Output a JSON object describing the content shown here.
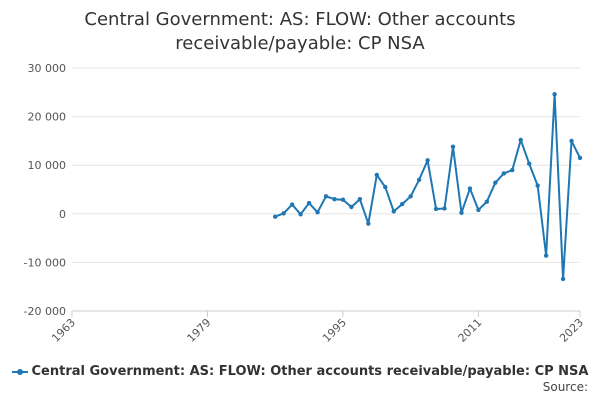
{
  "chart_data": {
    "type": "line",
    "title": "Central Government: AS: FLOW: Other accounts receivable/payable: CP NSA",
    "xlabel": "",
    "ylabel": "",
    "xlim": [
      1963,
      2023
    ],
    "ylim": [
      -20000,
      30000
    ],
    "x_ticks": [
      "1963",
      "1979",
      "1995",
      "2011",
      "2023"
    ],
    "y_ticks": [
      "30 000",
      "20 000",
      "10 000",
      "0",
      "-10 000",
      "-20 000"
    ],
    "y_tick_values": [
      30000,
      20000,
      10000,
      0,
      -10000,
      -20000
    ],
    "x_tick_values": [
      1963,
      1979,
      1995,
      2011,
      2023
    ],
    "grid": "horizontal",
    "legend_position": "bottom",
    "color": "#1f77b4",
    "series": [
      {
        "name": "Central Government: AS: FLOW: Other accounts receivable/payable: CP NSA",
        "x": [
          1987,
          1988,
          1989,
          1990,
          1991,
          1992,
          1993,
          1994,
          1995,
          1996,
          1997,
          1998,
          1999,
          2000,
          2001,
          2002,
          2003,
          2004,
          2005,
          2006,
          2007,
          2008,
          2009,
          2010,
          2011,
          2012,
          2013,
          2014,
          2015,
          2016,
          2017,
          2018,
          2019,
          2020,
          2021,
          2022,
          2023
        ],
        "values": [
          -600,
          100,
          1900,
          -100,
          2200,
          300,
          3600,
          3000,
          2900,
          1400,
          3000,
          -2000,
          8000,
          5500,
          500,
          2000,
          3600,
          7000,
          11000,
          1000,
          1100,
          13800,
          200,
          5200,
          800,
          2500,
          6400,
          8300,
          9000,
          15200,
          10300,
          5800,
          -8600,
          24600,
          -13400,
          15000,
          11500
        ]
      }
    ]
  },
  "legend": {
    "label": "Central Government: AS: FLOW: Other accounts receivable/payable: CP NSA"
  },
  "source": {
    "label": "Source:"
  }
}
